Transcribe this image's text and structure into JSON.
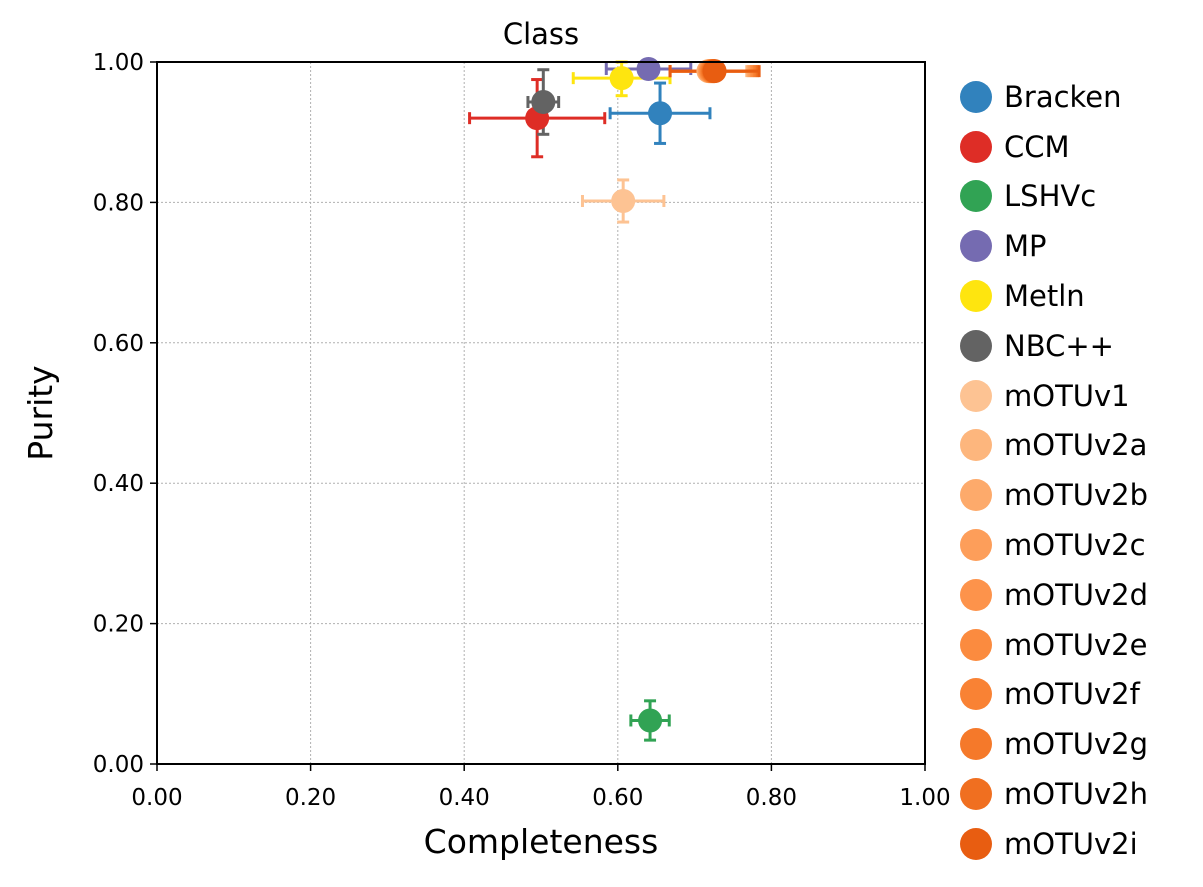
{
  "chart_data": {
    "type": "scatter",
    "title": "Class",
    "xlabel": "Completeness",
    "ylabel": "Purity",
    "xlim": [
      0,
      1
    ],
    "ylim": [
      0,
      1
    ],
    "xticks": [
      "0.00",
      "0.20",
      "0.40",
      "0.60",
      "0.80",
      "1.00"
    ],
    "yticks": [
      "0.00",
      "0.20",
      "0.40",
      "0.60",
      "0.80",
      "1.00"
    ],
    "grid": true,
    "legend_position": "right-outside",
    "series": [
      {
        "name": "Bracken",
        "color": "#3182bd",
        "x": 0.655,
        "y": 0.927,
        "x_err": 0.065,
        "y_err": 0.043
      },
      {
        "name": "CCM",
        "color": "#de2d26",
        "x": 0.495,
        "y": 0.92,
        "x_err": 0.088,
        "y_err": 0.055
      },
      {
        "name": "LSHVc",
        "color": "#31a354",
        "x": 0.642,
        "y": 0.062,
        "x_err": 0.025,
        "y_err": 0.028
      },
      {
        "name": "MP",
        "color": "#756bb1",
        "x": 0.64,
        "y": 0.99,
        "x_err": 0.055,
        "y_err": 0.01
      },
      {
        "name": "Metln",
        "color": "#fee50f",
        "x": 0.605,
        "y": 0.977,
        "x_err": 0.063,
        "y_err": 0.025
      },
      {
        "name": "NBC++",
        "color": "#636363",
        "x": 0.503,
        "y": 0.943,
        "x_err": 0.02,
        "y_err": 0.046
      },
      {
        "name": "mOTUv1",
        "color": "#fdc393",
        "x": 0.607,
        "y": 0.802,
        "x_err": 0.053,
        "y_err": 0.03
      },
      {
        "name": "mOTUv2a",
        "color": "#fdb67d",
        "x": 0.718,
        "y": 0.987,
        "x_err": 0.05,
        "y_err": 0.012
      },
      {
        "name": "mOTUv2b",
        "color": "#fdaa6b",
        "x": 0.719,
        "y": 0.987,
        "x_err": 0.051,
        "y_err": 0.012
      },
      {
        "name": "mOTUv2c",
        "color": "#fd9e5a",
        "x": 0.72,
        "y": 0.987,
        "x_err": 0.052,
        "y_err": 0.012
      },
      {
        "name": "mOTUv2d",
        "color": "#fd934b",
        "x": 0.721,
        "y": 0.987,
        "x_err": 0.053,
        "y_err": 0.012
      },
      {
        "name": "mOTUv2e",
        "color": "#fb8b3f",
        "x": 0.722,
        "y": 0.987,
        "x_err": 0.054,
        "y_err": 0.012
      },
      {
        "name": "mOTUv2f",
        "color": "#f98234",
        "x": 0.723,
        "y": 0.987,
        "x_err": 0.055,
        "y_err": 0.012
      },
      {
        "name": "mOTUv2g",
        "color": "#f5792a",
        "x": 0.724,
        "y": 0.987,
        "x_err": 0.056,
        "y_err": 0.012
      },
      {
        "name": "mOTUv2h",
        "color": "#f06f20",
        "x": 0.725,
        "y": 0.987,
        "x_err": 0.057,
        "y_err": 0.012
      },
      {
        "name": "mOTUv2i",
        "color": "#e85d11",
        "x": 0.726,
        "y": 0.987,
        "x_err": 0.058,
        "y_err": 0.012
      }
    ]
  }
}
